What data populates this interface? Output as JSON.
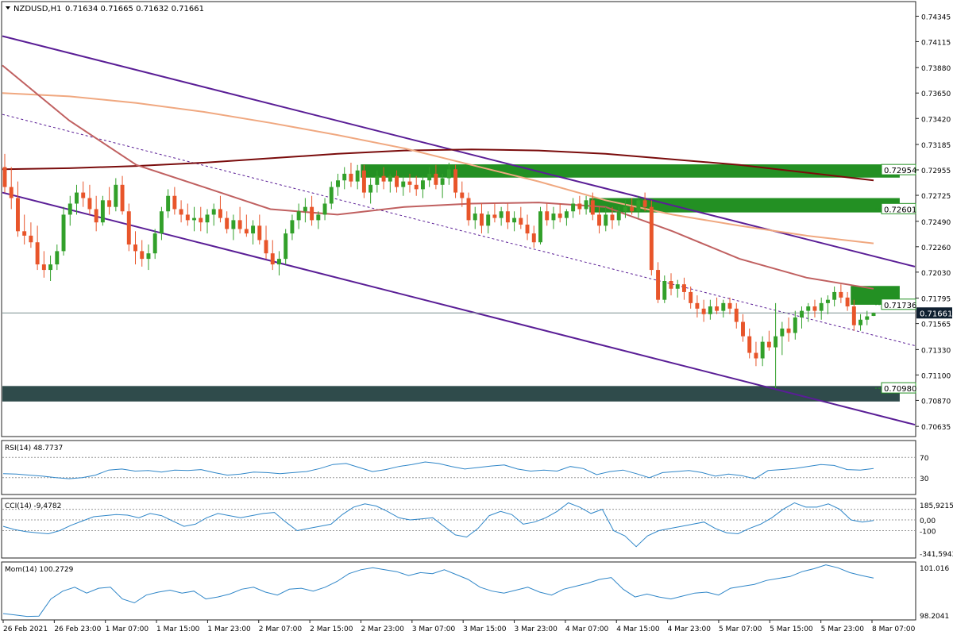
{
  "header": {
    "symbol": "NZDUSD,H1",
    "ohlc": "0.71634 0.71665 0.71632 0.71661"
  },
  "chart_data": {
    "type": "candlestick",
    "symbol": "NZDUSD",
    "timeframe": "H1",
    "ylim": [
      0.7055,
      0.7447
    ],
    "price_ticks": [
      "0.74345",
      "0.74115",
      "0.73880",
      "0.73650",
      "0.73420",
      "0.73185",
      "0.72955",
      "0.72725",
      "0.72490",
      "0.72260",
      "0.72030",
      "0.71795",
      "0.71565",
      "0.71330",
      "0.71100",
      "0.70870",
      "0.70635"
    ],
    "time_labels": [
      "26 Feb 2021",
      "26 Feb 23:00",
      "1 Mar 07:00",
      "1 Mar 15:00",
      "1 Mar 23:00",
      "2 Mar 07:00",
      "2 Mar 15:00",
      "2 Mar 23:00",
      "3 Mar 07:00",
      "3 Mar 15:00",
      "3 Mar 23:00",
      "4 Mar 07:00",
      "4 Mar 15:00",
      "4 Mar 23:00",
      "5 Mar 07:00",
      "5 Mar 15:00",
      "5 Mar 23:00",
      "8 Mar 07:00"
    ],
    "current_price": "0.71661",
    "levels": [
      {
        "label": "0.72954",
        "top": 0.73005,
        "bottom": 0.72885,
        "bar_start": 55,
        "bar_end": 137,
        "color": "#239023"
      },
      {
        "label": "0.72601",
        "top": 0.727,
        "bottom": 0.7257,
        "bar_start": 90,
        "bar_end": 137,
        "color": "#239023"
      },
      {
        "label": "0.71736",
        "top": 0.71905,
        "bottom": 0.71735,
        "bar_start": 130,
        "bar_end": 137,
        "color": "#239023"
      },
      {
        "label": "0.70980",
        "top": 0.71,
        "bottom": 0.7086,
        "bar_start": 0,
        "bar_end": 137,
        "color": "#2f4b4b"
      }
    ],
    "candles": [
      [
        0.7298,
        0.731,
        0.7275,
        0.728
      ],
      [
        0.728,
        0.7298,
        0.726,
        0.727
      ],
      [
        0.727,
        0.7285,
        0.7235,
        0.724
      ],
      [
        0.724,
        0.7255,
        0.7228,
        0.7236
      ],
      [
        0.7236,
        0.7248,
        0.7225,
        0.723
      ],
      [
        0.723,
        0.7245,
        0.7205,
        0.721
      ],
      [
        0.721,
        0.7222,
        0.7198,
        0.7205
      ],
      [
        0.7205,
        0.7218,
        0.7195,
        0.721
      ],
      [
        0.721,
        0.7228,
        0.7205,
        0.7222
      ],
      [
        0.7222,
        0.7262,
        0.7218,
        0.7255
      ],
      [
        0.7255,
        0.7272,
        0.7245,
        0.7265
      ],
      [
        0.7265,
        0.7282,
        0.7255,
        0.7275
      ],
      [
        0.7275,
        0.7285,
        0.7262,
        0.727
      ],
      [
        0.727,
        0.7282,
        0.7255,
        0.726
      ],
      [
        0.726,
        0.7272,
        0.724,
        0.7248
      ],
      [
        0.7248,
        0.7272,
        0.7245,
        0.7268
      ],
      [
        0.7268,
        0.728,
        0.7255,
        0.7262
      ],
      [
        0.7262,
        0.7288,
        0.7258,
        0.7282
      ],
      [
        0.7282,
        0.729,
        0.7255,
        0.7258
      ],
      [
        0.7258,
        0.7265,
        0.7222,
        0.7228
      ],
      [
        0.7228,
        0.724,
        0.721,
        0.7222
      ],
      [
        0.7222,
        0.7232,
        0.7208,
        0.7215
      ],
      [
        0.7215,
        0.7228,
        0.7205,
        0.722
      ],
      [
        0.722,
        0.7242,
        0.7215,
        0.7238
      ],
      [
        0.7238,
        0.7262,
        0.7232,
        0.7258
      ],
      [
        0.7258,
        0.7278,
        0.7252,
        0.7272
      ],
      [
        0.7272,
        0.728,
        0.7255,
        0.726
      ],
      [
        0.726,
        0.7268,
        0.7248,
        0.7255
      ],
      [
        0.7255,
        0.7265,
        0.7245,
        0.725
      ],
      [
        0.725,
        0.7262,
        0.724,
        0.7252
      ],
      [
        0.7252,
        0.7262,
        0.724,
        0.7248
      ],
      [
        0.7248,
        0.726,
        0.7238,
        0.7255
      ],
      [
        0.7255,
        0.7265,
        0.7245,
        0.726
      ],
      [
        0.726,
        0.7272,
        0.7248,
        0.7252
      ],
      [
        0.7252,
        0.7258,
        0.7238,
        0.7242
      ],
      [
        0.7242,
        0.7255,
        0.7232,
        0.725
      ],
      [
        0.725,
        0.7262,
        0.7238,
        0.7242
      ],
      [
        0.7242,
        0.7255,
        0.7235,
        0.7238
      ],
      [
        0.7238,
        0.725,
        0.7228,
        0.7245
      ],
      [
        0.7245,
        0.7255,
        0.7228,
        0.7232
      ],
      [
        0.7232,
        0.7245,
        0.7215,
        0.722
      ],
      [
        0.722,
        0.7232,
        0.7205,
        0.721
      ],
      [
        0.721,
        0.7222,
        0.72,
        0.7215
      ],
      [
        0.7215,
        0.7242,
        0.721,
        0.7238
      ],
      [
        0.7238,
        0.7255,
        0.7232,
        0.725
      ],
      [
        0.725,
        0.7265,
        0.7242,
        0.7258
      ],
      [
        0.7258,
        0.727,
        0.7248,
        0.7262
      ],
      [
        0.7262,
        0.7272,
        0.7245,
        0.725
      ],
      [
        0.725,
        0.7258,
        0.7242,
        0.7255
      ],
      [
        0.7255,
        0.727,
        0.725,
        0.7265
      ],
      [
        0.7265,
        0.7285,
        0.726,
        0.728
      ],
      [
        0.728,
        0.7292,
        0.7272,
        0.7286
      ],
      [
        0.7286,
        0.7298,
        0.7278,
        0.7292
      ],
      [
        0.7292,
        0.7302,
        0.728,
        0.7285
      ],
      [
        0.7285,
        0.73,
        0.7278,
        0.7295
      ],
      [
        0.7295,
        0.73,
        0.727,
        0.7275
      ],
      [
        0.7275,
        0.7288,
        0.7265,
        0.7282
      ],
      [
        0.7282,
        0.7295,
        0.7275,
        0.729
      ],
      [
        0.729,
        0.7298,
        0.7278,
        0.7285
      ],
      [
        0.7285,
        0.7292,
        0.7275,
        0.729
      ],
      [
        0.729,
        0.7295,
        0.7275,
        0.728
      ],
      [
        0.728,
        0.729,
        0.7272,
        0.7285
      ],
      [
        0.7285,
        0.7292,
        0.7275,
        0.7282
      ],
      [
        0.7282,
        0.729,
        0.7272,
        0.7278
      ],
      [
        0.7278,
        0.729,
        0.727,
        0.7286
      ],
      [
        0.7286,
        0.7298,
        0.728,
        0.7292
      ],
      [
        0.7292,
        0.73,
        0.7278,
        0.7282
      ],
      [
        0.7282,
        0.7292,
        0.727,
        0.7288
      ],
      [
        0.7288,
        0.7302,
        0.7282,
        0.7296
      ],
      [
        0.7296,
        0.73,
        0.727,
        0.7275
      ],
      [
        0.7275,
        0.7285,
        0.7262,
        0.727
      ],
      [
        0.727,
        0.7275,
        0.7245,
        0.725
      ],
      [
        0.725,
        0.7262,
        0.7242,
        0.7256
      ],
      [
        0.7256,
        0.7265,
        0.7238,
        0.7245
      ],
      [
        0.7245,
        0.7258,
        0.7238,
        0.7255
      ],
      [
        0.7255,
        0.7265,
        0.7248,
        0.7252
      ],
      [
        0.7252,
        0.7262,
        0.7245,
        0.7258
      ],
      [
        0.7258,
        0.7265,
        0.7242,
        0.7248
      ],
      [
        0.7248,
        0.7258,
        0.724,
        0.7252
      ],
      [
        0.7252,
        0.7262,
        0.7242,
        0.7246
      ],
      [
        0.7246,
        0.7255,
        0.7232,
        0.7238
      ],
      [
        0.7238,
        0.7245,
        0.7225,
        0.723
      ],
      [
        0.723,
        0.7262,
        0.7228,
        0.7258
      ],
      [
        0.7258,
        0.7265,
        0.7245,
        0.725
      ],
      [
        0.725,
        0.7262,
        0.7242,
        0.7256
      ],
      [
        0.7256,
        0.7265,
        0.7248,
        0.7252
      ],
      [
        0.7252,
        0.726,
        0.7245,
        0.7258
      ],
      [
        0.7258,
        0.727,
        0.7252,
        0.7265
      ],
      [
        0.7265,
        0.7272,
        0.7255,
        0.726
      ],
      [
        0.726,
        0.7272,
        0.7255,
        0.7268
      ],
      [
        0.7268,
        0.7275,
        0.725,
        0.7255
      ],
      [
        0.7255,
        0.7262,
        0.7238,
        0.7245
      ],
      [
        0.7245,
        0.7262,
        0.724,
        0.7255
      ],
      [
        0.7255,
        0.7262,
        0.7242,
        0.725
      ],
      [
        0.725,
        0.7262,
        0.7245,
        0.7258
      ],
      [
        0.7258,
        0.7268,
        0.7252,
        0.7262
      ],
      [
        0.7262,
        0.727,
        0.7255,
        0.7258
      ],
      [
        0.7258,
        0.7272,
        0.7252,
        0.7268
      ],
      [
        0.7268,
        0.7275,
        0.7258,
        0.7262
      ],
      [
        0.7262,
        0.7268,
        0.72,
        0.7205
      ],
      [
        0.7205,
        0.7212,
        0.7175,
        0.7178
      ],
      [
        0.7178,
        0.72,
        0.7175,
        0.7195
      ],
      [
        0.7195,
        0.7202,
        0.7182,
        0.7188
      ],
      [
        0.7188,
        0.7196,
        0.718,
        0.7192
      ],
      [
        0.7192,
        0.7198,
        0.7178,
        0.7185
      ],
      [
        0.7185,
        0.719,
        0.717,
        0.7175
      ],
      [
        0.7175,
        0.7182,
        0.7162,
        0.717
      ],
      [
        0.717,
        0.7178,
        0.7158,
        0.7165
      ],
      [
        0.7165,
        0.7178,
        0.716,
        0.7172
      ],
      [
        0.7172,
        0.718,
        0.7165,
        0.7168
      ],
      [
        0.7168,
        0.7178,
        0.7162,
        0.7175
      ],
      [
        0.7175,
        0.718,
        0.7165,
        0.717
      ],
      [
        0.717,
        0.7175,
        0.7152,
        0.7158
      ],
      [
        0.7158,
        0.7165,
        0.714,
        0.7145
      ],
      [
        0.7145,
        0.7152,
        0.7125,
        0.713
      ],
      [
        0.713,
        0.714,
        0.7118,
        0.7125
      ],
      [
        0.7125,
        0.7145,
        0.7118,
        0.714
      ],
      [
        0.714,
        0.715,
        0.7132,
        0.7135
      ],
      [
        0.7135,
        0.7175,
        0.7098,
        0.7145
      ],
      [
        0.7145,
        0.7158,
        0.7128,
        0.7152
      ],
      [
        0.7152,
        0.7162,
        0.714,
        0.7148
      ],
      [
        0.7148,
        0.7168,
        0.7142,
        0.7162
      ],
      [
        0.7162,
        0.7172,
        0.7152,
        0.7168
      ],
      [
        0.7168,
        0.7175,
        0.7158,
        0.7172
      ],
      [
        0.7172,
        0.7178,
        0.7162,
        0.7168
      ],
      [
        0.7168,
        0.718,
        0.716,
        0.7175
      ],
      [
        0.7175,
        0.7182,
        0.7165,
        0.7178
      ],
      [
        0.7178,
        0.719,
        0.7172,
        0.7185
      ],
      [
        0.7185,
        0.7192,
        0.7175,
        0.718
      ],
      [
        0.718,
        0.7185,
        0.7168,
        0.7172
      ],
      [
        0.7172,
        0.7178,
        0.715,
        0.7155
      ],
      [
        0.7155,
        0.7165,
        0.715,
        0.716
      ],
      [
        0.716,
        0.7168,
        0.7155,
        0.7163
      ],
      [
        0.71634,
        0.71665,
        0.71632,
        0.71661
      ]
    ],
    "ma_lines": [
      {
        "color": "#7a0c0c",
        "values": [
          0.7296,
          0.7297,
          0.7299,
          0.7302,
          0.7306,
          0.731,
          0.7313,
          0.7314,
          0.7313,
          0.731,
          0.7305,
          0.73,
          0.7293,
          0.7286
        ]
      },
      {
        "color": "#f0a880",
        "values": [
          0.7365,
          0.7362,
          0.7356,
          0.7348,
          0.7338,
          0.7327,
          0.7315,
          0.73,
          0.7285,
          0.7268,
          0.7255,
          0.7245,
          0.7236,
          0.7229
        ]
      },
      {
        "color": "#c06060",
        "values": [
          0.739,
          0.734,
          0.73,
          0.728,
          0.726,
          0.7255,
          0.7262,
          0.7265,
          0.7266,
          0.7262,
          0.724,
          0.7215,
          0.7198,
          0.7188
        ]
      }
    ],
    "channel": {
      "color": "#5a1e96",
      "upper": [
        0.74165,
        0.7208
      ],
      "lower": [
        0.7275,
        0.7065
      ],
      "mid": [
        0.73457,
        0.71365
      ]
    },
    "indicators": [
      {
        "name": "RSI(14)",
        "value": "48.7737",
        "levels_labels": [
          "70",
          "30"
        ],
        "ylim": [
          0,
          100
        ],
        "levels": [
          70,
          30
        ],
        "values": [
          38,
          37,
          35,
          33,
          30,
          28,
          30,
          35,
          45,
          47,
          43,
          44,
          41,
          45,
          44,
          46,
          40,
          35,
          37,
          41,
          40,
          38,
          40,
          42,
          48,
          56,
          58,
          50,
          42,
          46,
          52,
          56,
          61,
          58,
          52,
          47,
          50,
          53,
          55,
          47,
          43,
          45,
          43,
          52,
          48,
          36,
          42,
          45,
          38,
          30,
          40,
          42,
          44,
          40,
          33,
          37,
          34,
          28,
          44,
          46,
          48,
          52,
          56,
          54,
          46,
          45,
          48
        ]
      },
      {
        "name": "CCI(14)",
        "value": "-9,4782",
        "levels_labels": [
          "185,9215",
          "0,00",
          "-100",
          "-341,5943"
        ],
        "ylim": [
          -341.5943,
          185.9215
        ],
        "levels": [
          100,
          0,
          -100
        ],
        "values": [
          -60,
          -90,
          -110,
          -120,
          -130,
          -100,
          -50,
          -10,
          30,
          40,
          50,
          45,
          20,
          60,
          40,
          -10,
          -60,
          -40,
          20,
          60,
          40,
          20,
          40,
          60,
          70,
          -20,
          -100,
          -80,
          -60,
          -40,
          50,
          120,
          150,
          130,
          80,
          20,
          0,
          10,
          20,
          -60,
          -140,
          -160,
          -80,
          40,
          80,
          50,
          -40,
          -20,
          20,
          80,
          160,
          120,
          60,
          100,
          -100,
          -150,
          -250,
          -150,
          -100,
          -80,
          -60,
          -40,
          -20,
          -80,
          -120,
          -130,
          -80,
          -40,
          20,
          100,
          160,
          120,
          120,
          150,
          100,
          0,
          -20,
          -5
        ]
      },
      {
        "name": "Mom(14)",
        "value": "100.2729",
        "levels_labels": [
          "101.016",
          "98.2041"
        ],
        "ylim": [
          98.2041,
          101.016
        ],
        "values": [
          98.45,
          98.38,
          98.3,
          98.32,
          99.2,
          99.6,
          99.8,
          99.5,
          99.75,
          99.8,
          99.2,
          99.0,
          99.4,
          99.55,
          99.65,
          99.5,
          99.6,
          99.2,
          99.3,
          99.45,
          99.7,
          99.8,
          99.55,
          99.4,
          99.7,
          99.75,
          99.6,
          99.8,
          100.1,
          100.5,
          100.7,
          100.8,
          100.7,
          100.6,
          100.4,
          100.55,
          100.5,
          100.7,
          100.45,
          100.2,
          99.8,
          99.6,
          99.5,
          99.65,
          99.8,
          99.55,
          99.4,
          99.7,
          99.85,
          100.0,
          100.2,
          100.3,
          99.7,
          99.3,
          99.45,
          99.3,
          99.2,
          99.35,
          99.5,
          99.55,
          99.4,
          99.75,
          99.85,
          99.95,
          100.15,
          100.25,
          100.35,
          100.6,
          100.75,
          100.95,
          100.8,
          100.55,
          100.4,
          100.27
        ]
      }
    ]
  }
}
